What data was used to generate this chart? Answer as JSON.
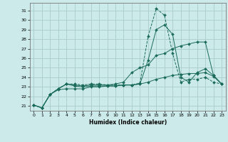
{
  "xlabel": "Humidex (Indice chaleur)",
  "background_color": "#cceaea",
  "grid_color": "#aacccc",
  "line_color": "#1a6b5a",
  "x_ticks": [
    0,
    1,
    2,
    3,
    4,
    5,
    6,
    7,
    8,
    9,
    10,
    11,
    12,
    13,
    14,
    15,
    16,
    17,
    18,
    19,
    20,
    21,
    22,
    23
  ],
  "y_ticks": [
    21,
    22,
    23,
    24,
    25,
    26,
    27,
    28,
    29,
    30,
    31
  ],
  "xlim": [
    -0.5,
    23.5
  ],
  "ylim": [
    20.5,
    31.8
  ],
  "series": [
    {
      "x": [
        0,
        1,
        2,
        3,
        4,
        5,
        6,
        7,
        8,
        9,
        10,
        11,
        12,
        13,
        14,
        15,
        16,
        17,
        18,
        19,
        20,
        21,
        22,
        23
      ],
      "y": [
        21.1,
        20.8,
        22.2,
        22.8,
        23.3,
        23.3,
        23.2,
        23.3,
        23.3,
        23.2,
        23.2,
        23.2,
        23.2,
        23.4,
        28.3,
        31.2,
        30.5,
        26.5,
        23.5,
        23.8,
        23.8,
        24.0,
        23.5,
        23.3
      ],
      "linestyle": "--",
      "markersize": 2.0
    },
    {
      "x": [
        0,
        1,
        2,
        3,
        4,
        5,
        6,
        7,
        8,
        9,
        10,
        11,
        12,
        13,
        14,
        15,
        16,
        17,
        18,
        19,
        20,
        21,
        22,
        23
      ],
      "y": [
        21.1,
        20.8,
        22.2,
        22.8,
        23.3,
        23.2,
        23.1,
        23.2,
        23.2,
        23.2,
        23.3,
        23.5,
        24.5,
        25.0,
        25.3,
        26.3,
        26.5,
        27.0,
        27.3,
        27.5,
        27.7,
        27.7,
        24.2,
        23.3
      ],
      "linestyle": "-",
      "markersize": 2.0
    },
    {
      "x": [
        0,
        1,
        2,
        3,
        4,
        5,
        6,
        7,
        8,
        9,
        10,
        11,
        12,
        13,
        14,
        15,
        16,
        17,
        18,
        19,
        20,
        21,
        22,
        23
      ],
      "y": [
        21.1,
        20.8,
        22.2,
        22.8,
        23.3,
        23.1,
        23.0,
        23.1,
        23.1,
        23.1,
        23.1,
        23.2,
        23.2,
        23.3,
        25.8,
        29.0,
        29.5,
        28.5,
        24.0,
        23.5,
        24.5,
        24.9,
        24.2,
        23.3
      ],
      "linestyle": "-",
      "markersize": 2.0
    },
    {
      "x": [
        0,
        1,
        2,
        3,
        4,
        5,
        6,
        7,
        8,
        9,
        10,
        11,
        12,
        13,
        14,
        15,
        16,
        17,
        18,
        19,
        20,
        21,
        22,
        23
      ],
      "y": [
        21.1,
        20.8,
        22.2,
        22.7,
        22.8,
        22.8,
        22.8,
        23.0,
        23.0,
        23.1,
        23.1,
        23.2,
        23.2,
        23.3,
        23.5,
        23.8,
        24.0,
        24.2,
        24.3,
        24.4,
        24.4,
        24.5,
        24.1,
        23.3
      ],
      "linestyle": "-",
      "markersize": 2.0
    }
  ]
}
